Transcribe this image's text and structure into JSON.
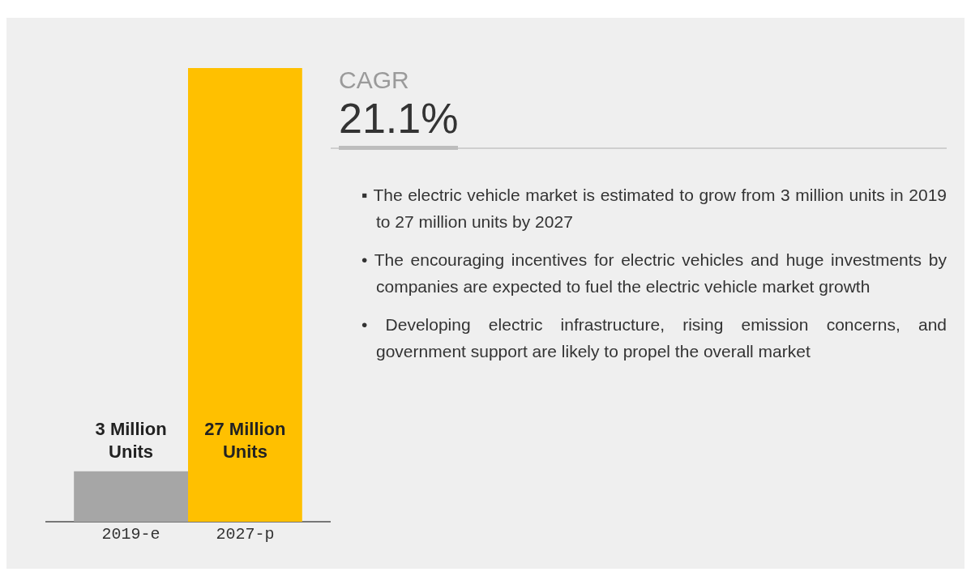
{
  "chart_data": [
    {
      "type": "bar",
      "categories": [
        "2019-e",
        "2027-p"
      ],
      "values": [
        3,
        27
      ],
      "colors": [
        "#a6a6a6",
        "#ffc000"
      ],
      "value_labels": [
        "3 Million Units",
        "27 Million Units"
      ]
    },
    {
      "type": "other",
      "title": "CAGR",
      "subtitle": "21.1%",
      "annotations": [
        "▪ The electric vehicle market is estimated to grow from 3 million units in 2019 to 27 million units by 2027",
        "• The encouraging incentives for electric vehicles and huge investments by companies are expected to fuel the electric vehicle market growth",
        "• Developing electric infrastructure, rising emission concerns, and government support are likely to propel the overall market"
      ]
    }
  ]
}
